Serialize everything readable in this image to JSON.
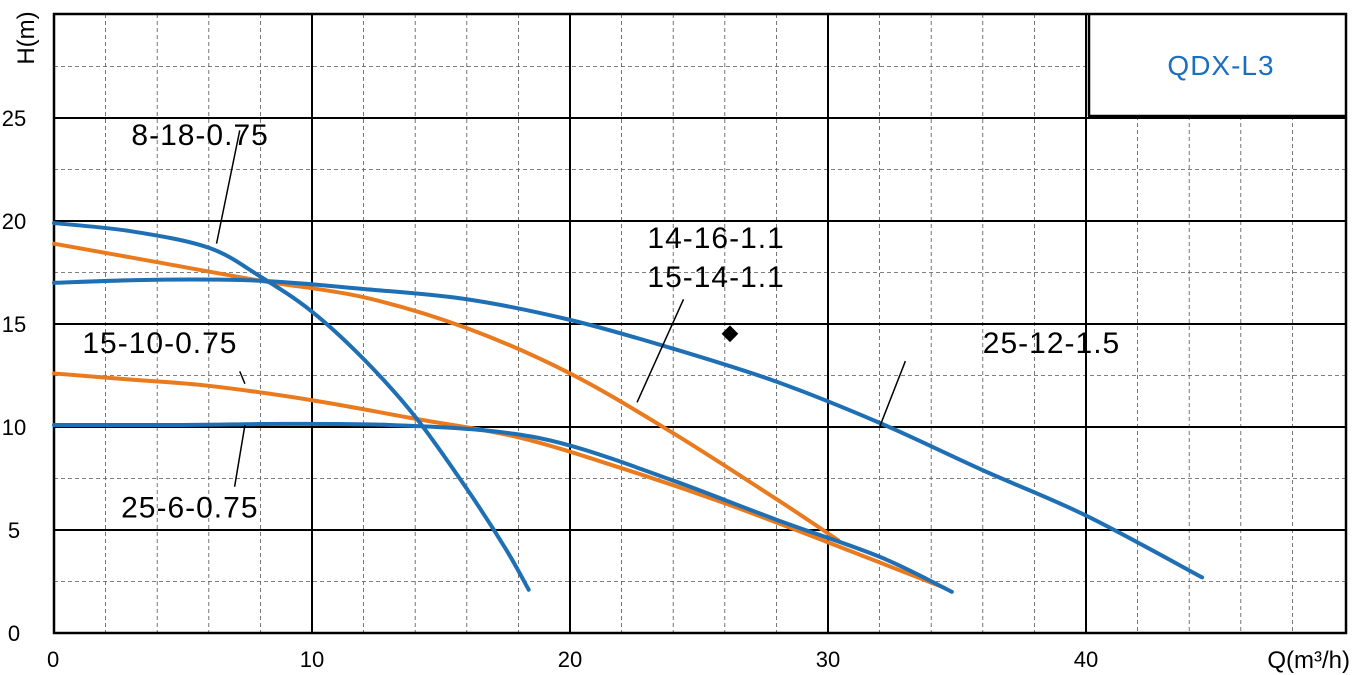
{
  "chart_data": {
    "type": "line",
    "model": "QDX-L3",
    "xlabel": "Q(m³/h)",
    "ylabel": "H(m)",
    "xlim": [
      0,
      50
    ],
    "ylim": [
      0,
      30
    ],
    "x_ticks": [
      "0",
      "10",
      "20",
      "30",
      "40"
    ],
    "y_ticks": [
      "0",
      "5",
      "10",
      "15",
      "20",
      "25"
    ],
    "grid": true,
    "colors": {
      "blue": "#1f6fb5",
      "orange": "#ea7a1e",
      "grid": "#000000",
      "title": "#1a6fc0"
    },
    "series": [
      {
        "name": "8-18-0.75",
        "color": "blue",
        "points": [
          [
            0,
            19.9
          ],
          [
            3,
            19.5
          ],
          [
            6,
            18.7
          ],
          [
            8,
            17.3
          ],
          [
            10,
            15.6
          ],
          [
            12,
            13.3
          ],
          [
            14,
            10.5
          ],
          [
            16,
            7.0
          ],
          [
            17.5,
            4.1
          ],
          [
            18.4,
            2.1
          ]
        ]
      },
      {
        "name": "14-16-1.1",
        "color": "orange",
        "points": [
          [
            0,
            18.9
          ],
          [
            4,
            18.0
          ],
          [
            8,
            17.1
          ],
          [
            12,
            16.3
          ],
          [
            16,
            14.8
          ],
          [
            20,
            12.6
          ],
          [
            24,
            9.7
          ],
          [
            28,
            6.5
          ],
          [
            30.4,
            4.5
          ]
        ]
      },
      {
        "name": "15-14-1.1",
        "color": "blue",
        "points": [
          [
            0,
            17.0
          ],
          [
            4,
            17.15
          ],
          [
            8,
            17.1
          ],
          [
            12,
            16.7
          ],
          [
            16,
            16.2
          ],
          [
            20,
            15.2
          ],
          [
            24,
            13.8
          ],
          [
            28,
            12.2
          ],
          [
            32,
            10.2
          ],
          [
            36,
            7.9
          ],
          [
            40,
            5.7
          ],
          [
            44.5,
            2.7
          ]
        ]
      },
      {
        "name": "15-10-0.75",
        "color": "orange",
        "points": [
          [
            0,
            12.6
          ],
          [
            3,
            12.3
          ],
          [
            6,
            12.0
          ],
          [
            10,
            11.3
          ],
          [
            14,
            10.4
          ],
          [
            18,
            9.5
          ],
          [
            22,
            8.0
          ],
          [
            26,
            6.3
          ],
          [
            30,
            4.4
          ],
          [
            34.5,
            2.2
          ]
        ]
      },
      {
        "name": "25-6-0.75",
        "color": "blue",
        "points": [
          [
            0,
            10.1
          ],
          [
            5,
            10.1
          ],
          [
            9,
            10.15
          ],
          [
            13,
            10.1
          ],
          [
            17,
            9.8
          ],
          [
            20,
            9.1
          ],
          [
            24,
            7.4
          ],
          [
            28,
            5.5
          ],
          [
            32,
            3.7
          ],
          [
            34.8,
            2.0
          ]
        ]
      }
    ],
    "labels": [
      {
        "text": "8-18-0.75",
        "pos": [
          3.0,
          23.7
        ],
        "leader": [
          [
            7.2,
            24.4
          ],
          [
            6.3,
            18.9
          ]
        ]
      },
      {
        "text": "14-16-1.1",
        "pos": [
          23.0,
          18.7
        ],
        "leader": null
      },
      {
        "text": "15-14-1.1",
        "pos": [
          23.0,
          16.8
        ],
        "leader": [
          [
            24.4,
            16.2
          ],
          [
            22.6,
            11.2
          ]
        ]
      },
      {
        "text": "25-12-1.5",
        "pos": [
          36.0,
          13.6
        ],
        "leader": [
          [
            33.0,
            13.2
          ],
          [
            32.0,
            10.0
          ]
        ]
      },
      {
        "text": "15-10-0.75",
        "pos": [
          1.1,
          13.6
        ],
        "leader": [
          [
            7.2,
            12.7
          ],
          [
            7.4,
            12.1
          ]
        ]
      },
      {
        "text": "25-6-0.75",
        "pos": [
          2.6,
          5.6
        ],
        "leader": [
          [
            7.4,
            10.1
          ],
          [
            7.0,
            7.1
          ]
        ]
      }
    ],
    "marker": {
      "text": "◆",
      "pos": [
        26.2,
        14.5
      ]
    }
  }
}
